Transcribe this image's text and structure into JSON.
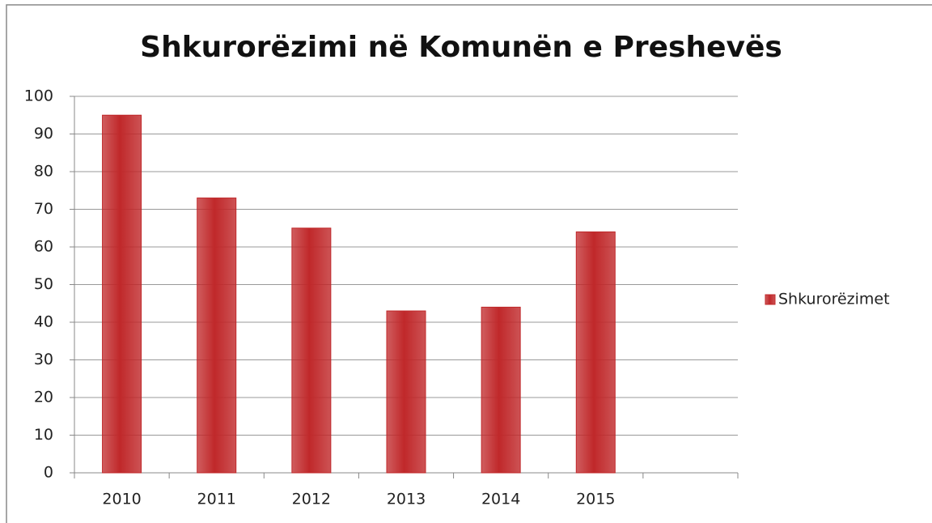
{
  "chart_data": {
    "type": "bar",
    "title": "Shkurorëzimi në Komunën e Preshevës",
    "categories": [
      "2010",
      "2011",
      "2012",
      "2013",
      "2014",
      "2015",
      null
    ],
    "series": [
      {
        "name": "Shkurorëzimet",
        "color": "#c0282a",
        "values": [
          95,
          73,
          65,
          43,
          44,
          64,
          null
        ]
      }
    ],
    "ylim": [
      0,
      100
    ],
    "yticks": [
      0,
      10,
      20,
      30,
      40,
      50,
      60,
      70,
      80,
      90,
      100
    ],
    "grid": true,
    "legend": "right"
  }
}
